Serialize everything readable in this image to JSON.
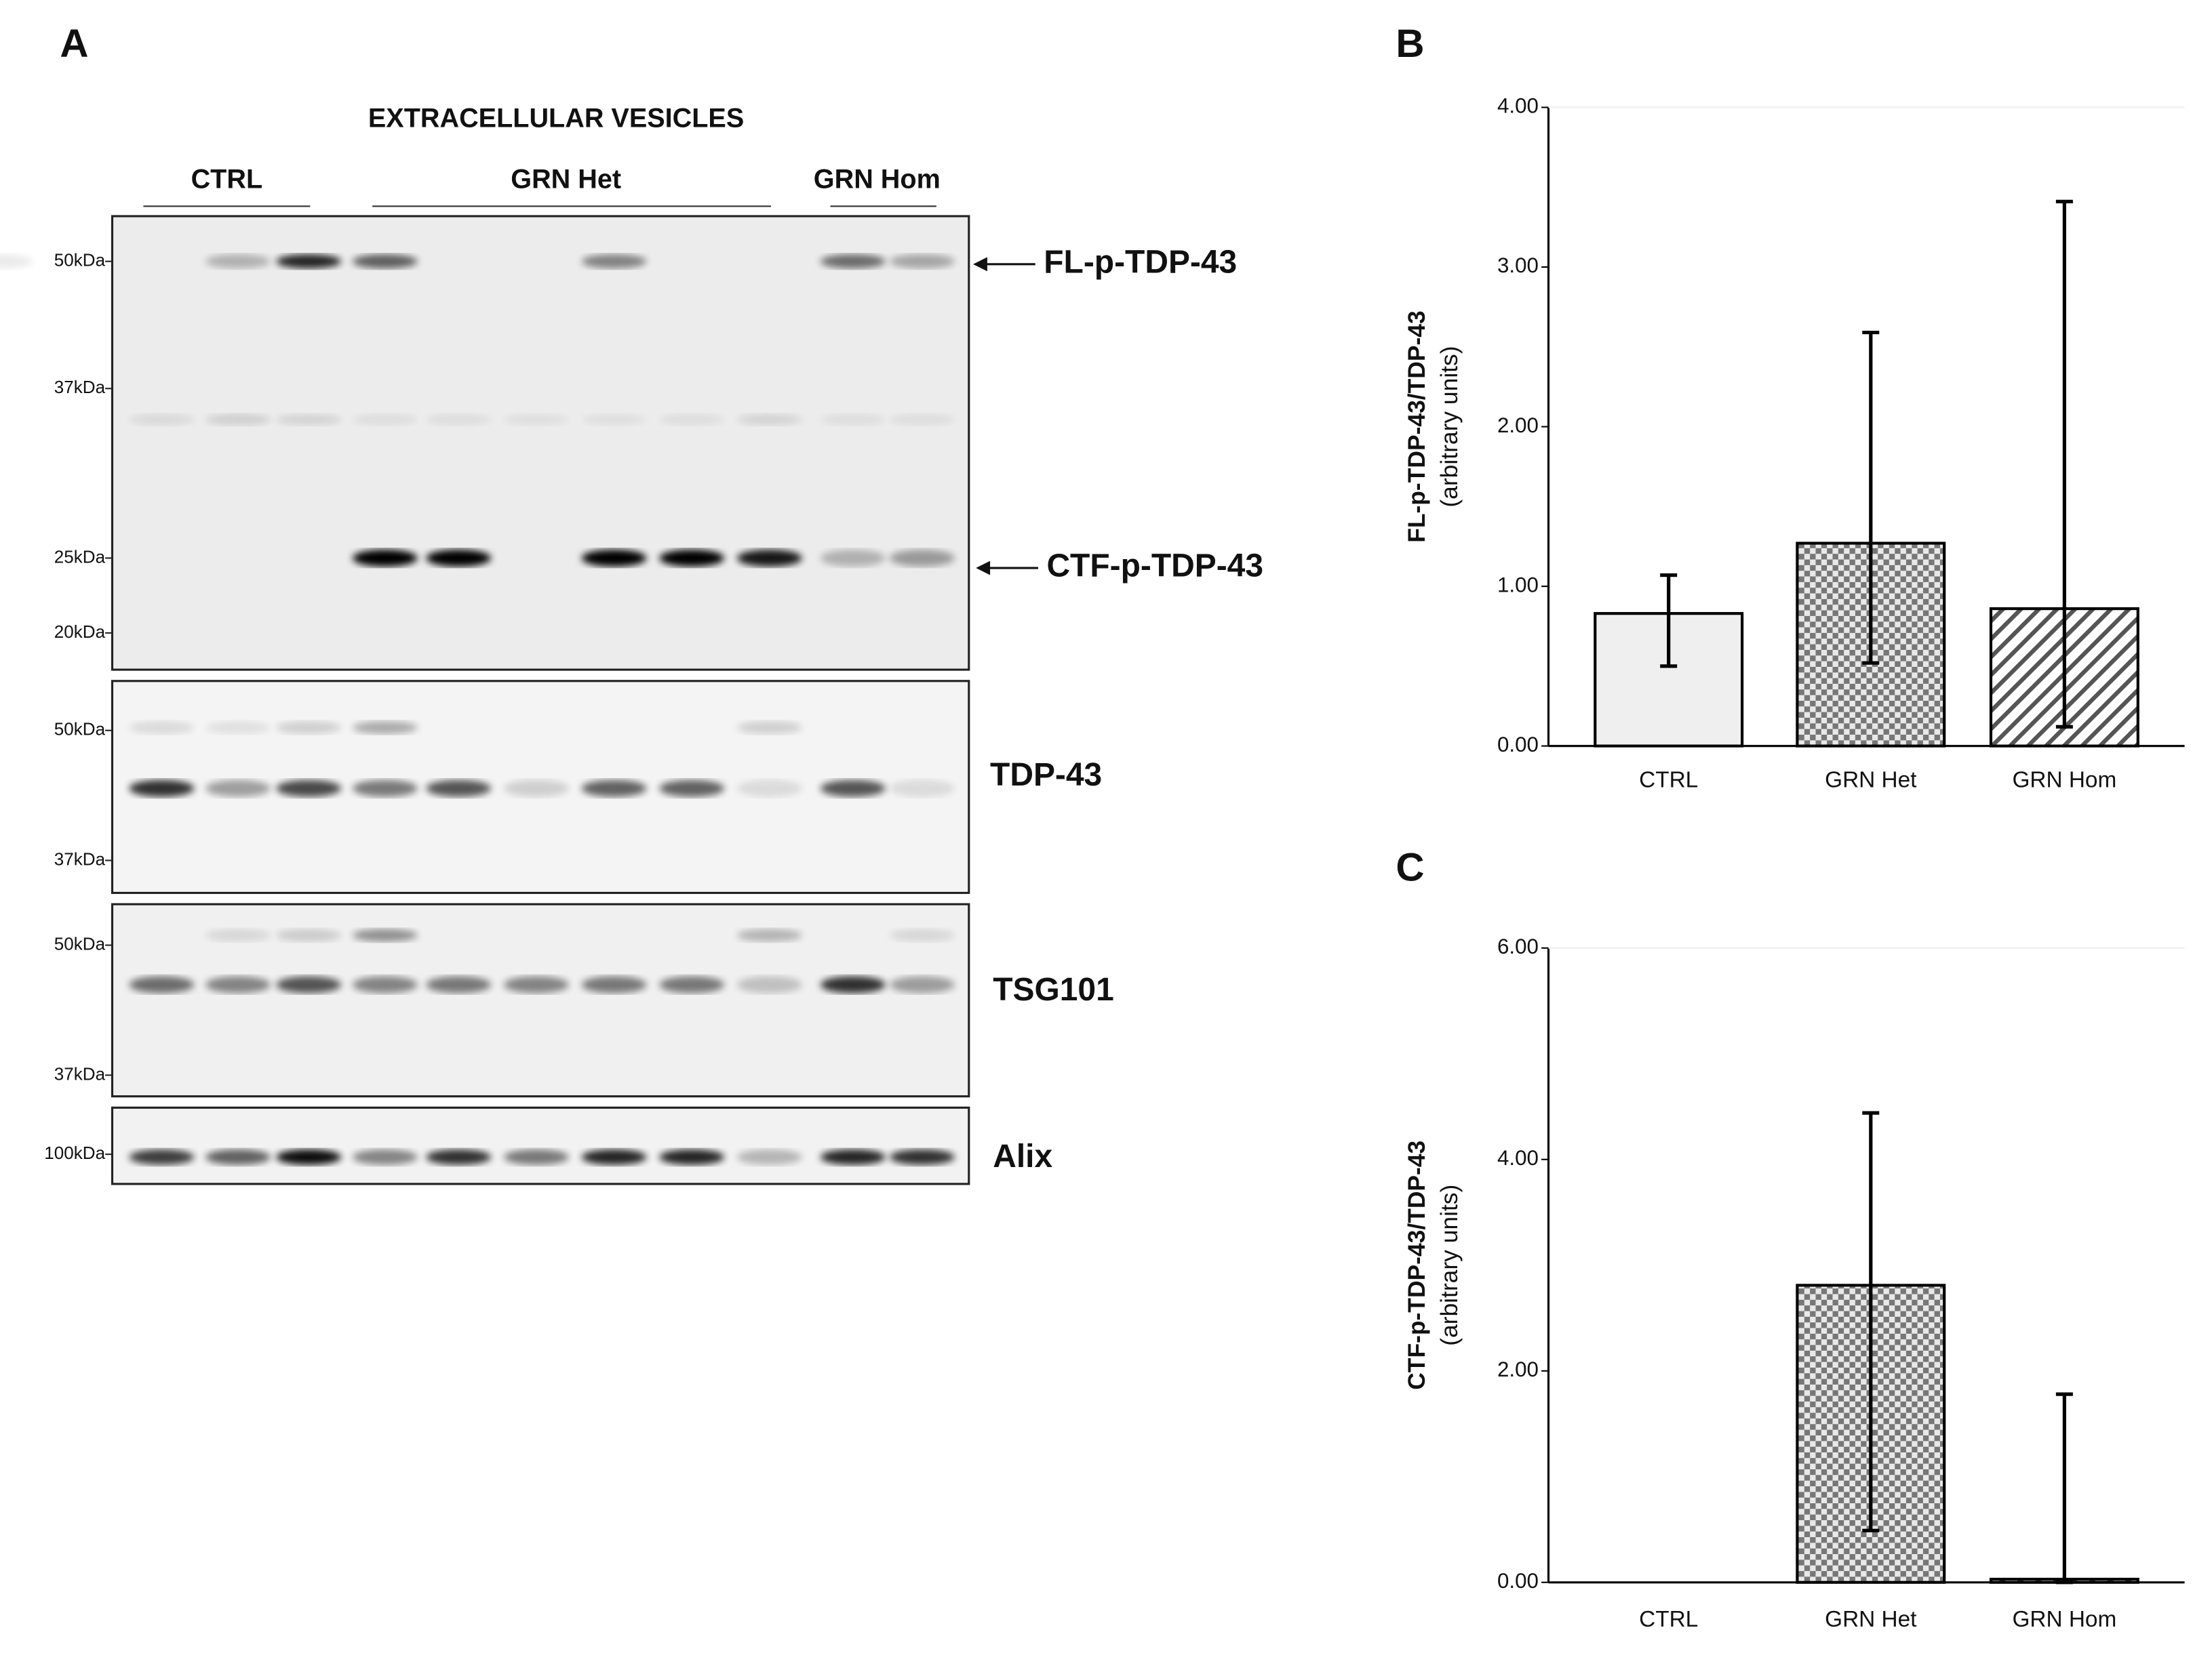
{
  "blot": {
    "panel": "A",
    "title": "EXTRACELLULAR VESICLES",
    "groups": [
      "CTRL",
      "GRN Het",
      "GRN Hom"
    ],
    "membranes": [
      {
        "markers": [
          "50kDa",
          "37kDa",
          "25kDa",
          "20kDa"
        ],
        "labels": [
          "FL-p-TDP-43",
          "CTF-p-TDP-43"
        ]
      },
      {
        "markers": [
          "50kDa",
          "37kDa"
        ],
        "labels": [
          "TDP-43"
        ]
      },
      {
        "markers": [
          "50kDa",
          "37kDa"
        ],
        "labels": [
          "TSG101"
        ]
      },
      {
        "markers": [
          "100kDa"
        ],
        "labels": [
          "Alix"
        ]
      }
    ]
  },
  "chart_data": [
    {
      "type": "bar",
      "panel": "B",
      "ylabel": [
        "FL-p-TDP-43/TDP-43",
        "(arbitrary units)"
      ],
      "categories": [
        "CTRL",
        "GRN Het",
        "GRN Hom"
      ],
      "values": [
        0.83,
        1.27,
        0.86
      ],
      "lower": [
        0.5,
        0.52,
        0.12
      ],
      "upper": [
        1.07,
        2.59,
        3.41
      ],
      "patterns": [
        "solid",
        "checker",
        "hatch"
      ],
      "fill": "#efefef",
      "edge": "#000000",
      "ylim": [
        0,
        4
      ],
      "yticks": [
        {
          "value": 0,
          "label": "0.00"
        },
        {
          "value": 1,
          "label": "1.00"
        },
        {
          "value": 2,
          "label": "2.00"
        },
        {
          "value": 3,
          "label": "3.00"
        },
        {
          "value": 4,
          "label": "4.00"
        }
      ]
    },
    {
      "type": "bar",
      "panel": "C",
      "ylabel": [
        "CTF-p-TDP-43/TDP-43",
        "(arbitrary units)"
      ],
      "categories": [
        "CTRL",
        "GRN Het",
        "GRN Hom"
      ],
      "values": [
        0,
        2.81,
        0.03
      ],
      "lower": [
        null,
        0.49,
        0
      ],
      "upper": [
        null,
        4.44,
        1.78
      ],
      "patterns": [
        "solid",
        "checker",
        "hatch"
      ],
      "fill": "#efefef",
      "edge": "#000000",
      "ylim": [
        0,
        6
      ],
      "yticks": [
        {
          "value": 0,
          "label": "0.00"
        },
        {
          "value": 2,
          "label": "2.00"
        },
        {
          "value": 4,
          "label": "4.00"
        },
        {
          "value": 6,
          "label": "6.00"
        }
      ]
    }
  ]
}
